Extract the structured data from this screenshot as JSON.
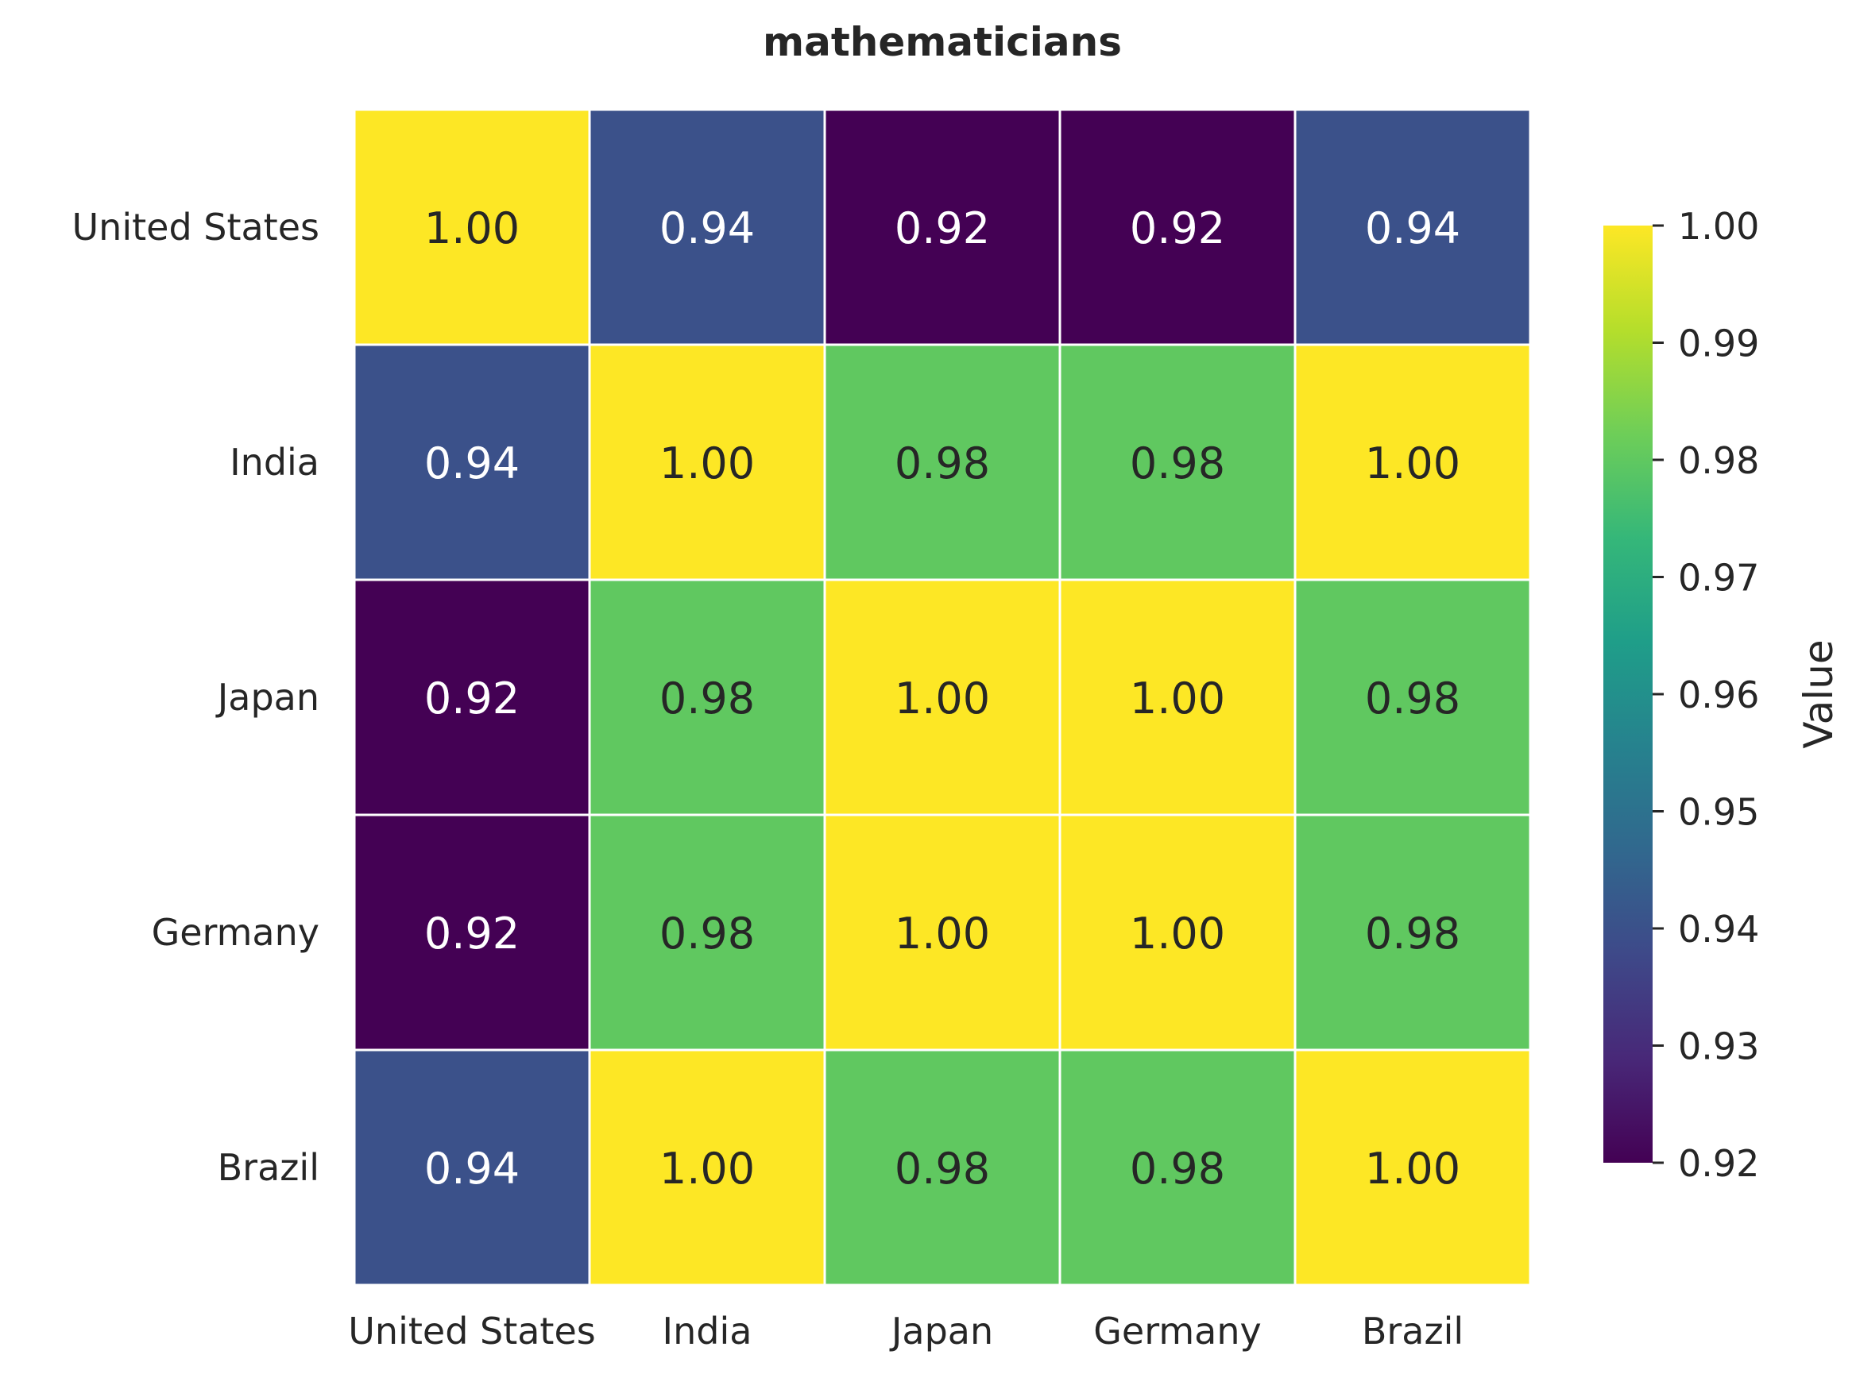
{
  "chart_data": {
    "type": "heatmap",
    "title": "mathematicians",
    "xlabel": "",
    "ylabel": "",
    "x_categories": [
      "United States",
      "India",
      "Japan",
      "Germany",
      "Brazil"
    ],
    "y_categories": [
      "United States",
      "India",
      "Japan",
      "Germany",
      "Brazil"
    ],
    "values": [
      [
        1.0,
        0.94,
        0.92,
        0.92,
        0.94
      ],
      [
        0.94,
        1.0,
        0.98,
        0.98,
        1.0
      ],
      [
        0.92,
        0.98,
        1.0,
        1.0,
        0.98
      ],
      [
        0.92,
        0.98,
        1.0,
        1.0,
        0.98
      ],
      [
        0.94,
        1.0,
        0.98,
        0.98,
        1.0
      ]
    ],
    "annotation_format": "0.00",
    "colormap": "viridis",
    "vmin": 0.92,
    "vmax": 1.0,
    "colorbar": {
      "label": "Value",
      "ticks": [
        "0.92",
        "0.93",
        "0.94",
        "0.95",
        "0.96",
        "0.97",
        "0.98",
        "0.99",
        "1.00"
      ]
    },
    "grid": false,
    "colors": {
      "text_dark": "#262626",
      "text_light": "#ffffff",
      "cell_border": "#ffffff"
    }
  }
}
